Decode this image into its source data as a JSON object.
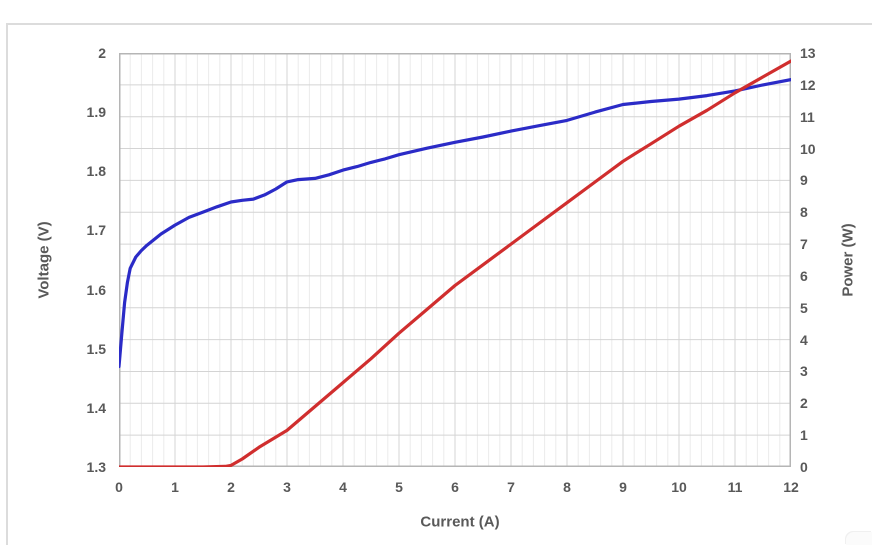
{
  "colors": {
    "voltage_line": "#2B2BC7",
    "power_line": "#D02E2E",
    "axis_text": "#595959",
    "grid_major": "#d4d4d4",
    "grid_minor": "#ebebeb",
    "plot_border": "#b5b5b5",
    "figure_border": "#dcdcdc",
    "background": "#ffffff"
  },
  "chart_data": {
    "type": "line",
    "title": "",
    "xlabel": "Current (A)",
    "ylabel_left": "Voltage (V)",
    "ylabel_right": "Power (W)",
    "legend": "none",
    "grid": {
      "horizontal": "on (1 W steps)",
      "vertical_major": "on (1 A steps)",
      "vertical_minor": "on (0.2 A steps)"
    },
    "x_axis": {
      "min": 0,
      "max": 12,
      "major_step": 1,
      "minor_step": 0.2,
      "tick_labels": [
        "0",
        "1",
        "2",
        "3",
        "4",
        "5",
        "6",
        "7",
        "8",
        "9",
        "10",
        "11",
        "12"
      ]
    },
    "y_axis_left": {
      "min": 1.3,
      "max": 2.0,
      "step": 0.1,
      "tick_labels": [
        "2",
        "1.9",
        "1.8",
        "1.7",
        "1.6",
        "1.5",
        "1.4",
        "1.3"
      ]
    },
    "y_axis_right": {
      "min": 0,
      "max": 13,
      "step": 1,
      "tick_labels": [
        "13",
        "12",
        "11",
        "10",
        "9",
        "8",
        "7",
        "6",
        "5",
        "4",
        "3",
        "2",
        "1",
        "0"
      ]
    },
    "series": [
      {
        "name": "Voltage",
        "axis": "left",
        "color": "#2B2BC7",
        "stroke_width": 3.2,
        "points": [
          [
            0,
            1.47
          ],
          [
            0.05,
            1.525
          ],
          [
            0.1,
            1.578
          ],
          [
            0.15,
            1.612
          ],
          [
            0.2,
            1.636
          ],
          [
            0.3,
            1.655
          ],
          [
            0.4,
            1.666
          ],
          [
            0.5,
            1.675
          ],
          [
            0.75,
            1.694
          ],
          [
            1,
            1.709
          ],
          [
            1.25,
            1.722
          ],
          [
            1.5,
            1.731
          ],
          [
            1.75,
            1.74
          ],
          [
            2,
            1.748
          ],
          [
            2.2,
            1.751
          ],
          [
            2.4,
            1.753
          ],
          [
            2.6,
            1.76
          ],
          [
            2.8,
            1.77
          ],
          [
            3,
            1.782
          ],
          [
            3.2,
            1.786
          ],
          [
            3.5,
            1.788
          ],
          [
            3.75,
            1.794
          ],
          [
            4,
            1.802
          ],
          [
            4.25,
            1.808
          ],
          [
            4.5,
            1.815
          ],
          [
            4.75,
            1.821
          ],
          [
            5,
            1.828
          ],
          [
            5.5,
            1.839
          ],
          [
            6,
            1.849
          ],
          [
            6.5,
            1.858
          ],
          [
            7,
            1.868
          ],
          [
            7.5,
            1.877
          ],
          [
            8,
            1.886
          ],
          [
            8.5,
            1.9
          ],
          [
            9,
            1.913
          ],
          [
            9.5,
            1.918
          ],
          [
            10,
            1.922
          ],
          [
            10.5,
            1.928
          ],
          [
            11,
            1.936
          ],
          [
            11.5,
            1.946
          ],
          [
            12,
            1.955
          ]
        ]
      },
      {
        "name": "Power",
        "axis": "right",
        "color": "#D02E2E",
        "stroke_width": 3.2,
        "points": [
          [
            0,
            0
          ],
          [
            0.5,
            0
          ],
          [
            1,
            0
          ],
          [
            1.5,
            0
          ],
          [
            1.9,
            0.02
          ],
          [
            2,
            0.05
          ],
          [
            2.2,
            0.25
          ],
          [
            2.5,
            0.62
          ],
          [
            3,
            1.15
          ],
          [
            3.5,
            1.9
          ],
          [
            4,
            2.65
          ],
          [
            4.5,
            3.4
          ],
          [
            5,
            4.2
          ],
          [
            5.5,
            4.95
          ],
          [
            6,
            5.7
          ],
          [
            6.5,
            6.35
          ],
          [
            7,
            7.0
          ],
          [
            7.5,
            7.65
          ],
          [
            8,
            8.3
          ],
          [
            8.5,
            8.95
          ],
          [
            9,
            9.6
          ],
          [
            9.5,
            10.15
          ],
          [
            10,
            10.7
          ],
          [
            10.5,
            11.2
          ],
          [
            11,
            11.75
          ],
          [
            11.5,
            12.25
          ],
          [
            12,
            12.75
          ]
        ]
      }
    ]
  },
  "layout_note": "dual-axis line chart, voltage (blue, left axis) and power (red, right axis) vs current"
}
